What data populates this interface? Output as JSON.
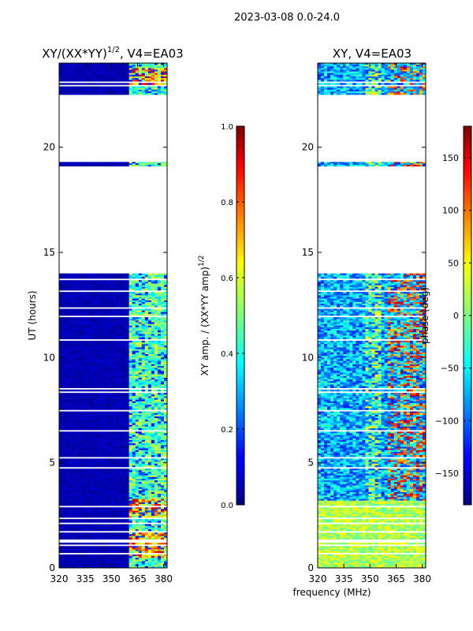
{
  "figure": {
    "suptitle": "2023-03-08 0.0-24.0",
    "shared_xlabel": "frequency (MHz)"
  },
  "chart_data": [
    {
      "type": "heatmap",
      "title": "XY/(XX*YY)",
      "title_exponent": "1/2",
      "title_suffix": ", V4=EA03",
      "xlabel": "",
      "ylabel": "UT (hours)",
      "xlim": [
        320,
        382
      ],
      "ylim": [
        0,
        24
      ],
      "xticks": [
        320,
        335,
        350,
        365,
        380
      ],
      "yticks": [
        0,
        5,
        10,
        15,
        20
      ],
      "colorbar": {
        "label": "XY amp. / (XX*YY amp)",
        "label_exponent": "1/2",
        "range": [
          0.0,
          1.0
        ],
        "ticks": [
          "0.0",
          "0.2",
          "0.4",
          "0.6",
          "0.8",
          "1.0"
        ],
        "colormap": "jet"
      },
      "data_ranges_hours": [
        [
          0,
          14.0
        ],
        [
          19.1,
          19.3
        ],
        [
          22.5,
          24.0
        ]
      ],
      "bright_channel_band_mhz": [
        360,
        382
      ],
      "strong_time_ranges_hours": [
        [
          0.5,
          1.7
        ],
        [
          2.4,
          3.3
        ],
        [
          23.0,
          23.8
        ]
      ]
    },
    {
      "type": "heatmap",
      "title": "XY, V4=EA03",
      "xlabel": "frequency (MHz)",
      "ylabel": "",
      "xlim": [
        320,
        382
      ],
      "ylim": [
        0,
        24
      ],
      "xticks": [
        320,
        335,
        350,
        365,
        380
      ],
      "yticks": [
        0,
        5,
        10,
        15,
        20
      ],
      "colorbar": {
        "label": "phase (deg)",
        "range": [
          -180,
          180
        ],
        "ticks": [
          "-150",
          "-100",
          "-50",
          "0",
          "50",
          "100",
          "150"
        ],
        "colormap": "jet"
      },
      "data_ranges_hours": [
        [
          0,
          14.0
        ],
        [
          19.1,
          19.3
        ],
        [
          22.5,
          24.0
        ]
      ]
    }
  ]
}
